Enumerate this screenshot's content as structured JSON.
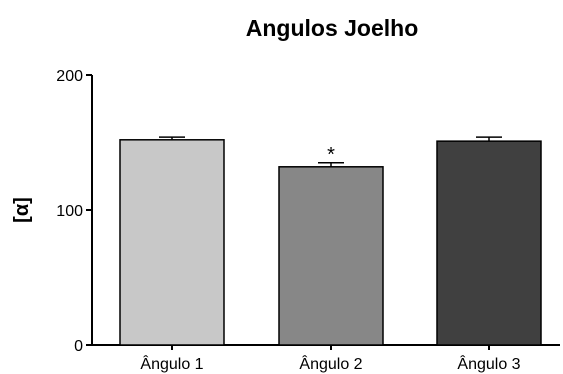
{
  "chart_data": {
    "type": "bar",
    "title": "Angulos Joelho",
    "xlabel": "",
    "ylabel": "[α]",
    "ylim": [
      0,
      200
    ],
    "yticks": [
      {
        "value": 0,
        "label": "0"
      },
      {
        "value": 100,
        "label": "100"
      },
      {
        "value": 200,
        "label": "200"
      }
    ],
    "categories": [
      "Ângulo 1",
      "Ângulo 2",
      "Ângulo 3"
    ],
    "values": [
      152,
      132,
      151
    ],
    "errors": [
      2,
      3,
      3
    ],
    "bar_colors": [
      "#c8c8c8",
      "#878787",
      "#404040"
    ],
    "annotations": [
      {
        "category_index": 1,
        "text": "*"
      }
    ],
    "grid": false,
    "legend": "none"
  }
}
